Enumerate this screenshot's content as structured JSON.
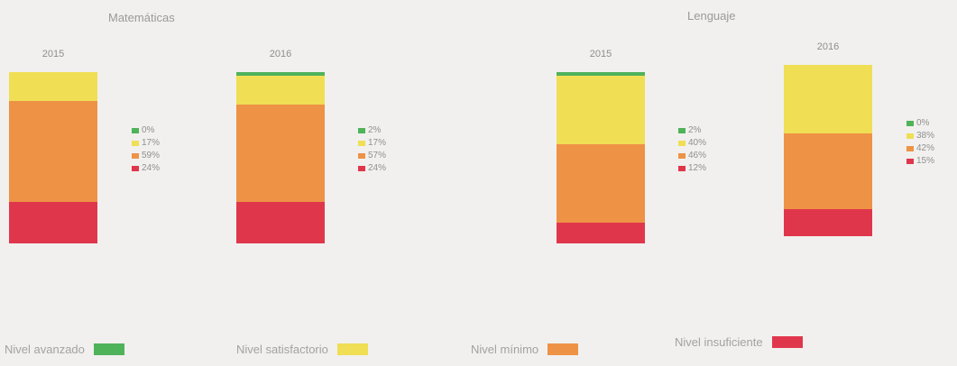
{
  "chart_data": {
    "type": "bar",
    "stacked": true,
    "levels": [
      {
        "name": "Nivel avanzado",
        "color": "#4fb35a"
      },
      {
        "name": "Nivel satisfactorio",
        "color": "#f0de55"
      },
      {
        "name": "Nivel mínimo",
        "color": "#ee9246"
      },
      {
        "name": "Nivel insuficiente",
        "color": "#e0364c"
      }
    ],
    "groups": [
      {
        "title": "Matemáticas",
        "bars": [
          {
            "year": "2015",
            "values": [
              0,
              17,
              59,
              24
            ],
            "labels": [
              "0%",
              "17%",
              "59%",
              "24%"
            ]
          },
          {
            "year": "2016",
            "values": [
              2,
              17,
              57,
              24
            ],
            "labels": [
              "2%",
              "17%",
              "57%",
              "24%"
            ]
          }
        ]
      },
      {
        "title": "Lenguaje",
        "bars": [
          {
            "year": "2015",
            "values": [
              2,
              40,
              46,
              12
            ],
            "labels": [
              "2%",
              "40%",
              "46%",
              "12%"
            ]
          },
          {
            "year": "2016",
            "values": [
              0,
              38,
              42,
              15
            ],
            "labels": [
              "0%",
              "38%",
              "42%",
              "15%"
            ]
          }
        ]
      }
    ]
  }
}
